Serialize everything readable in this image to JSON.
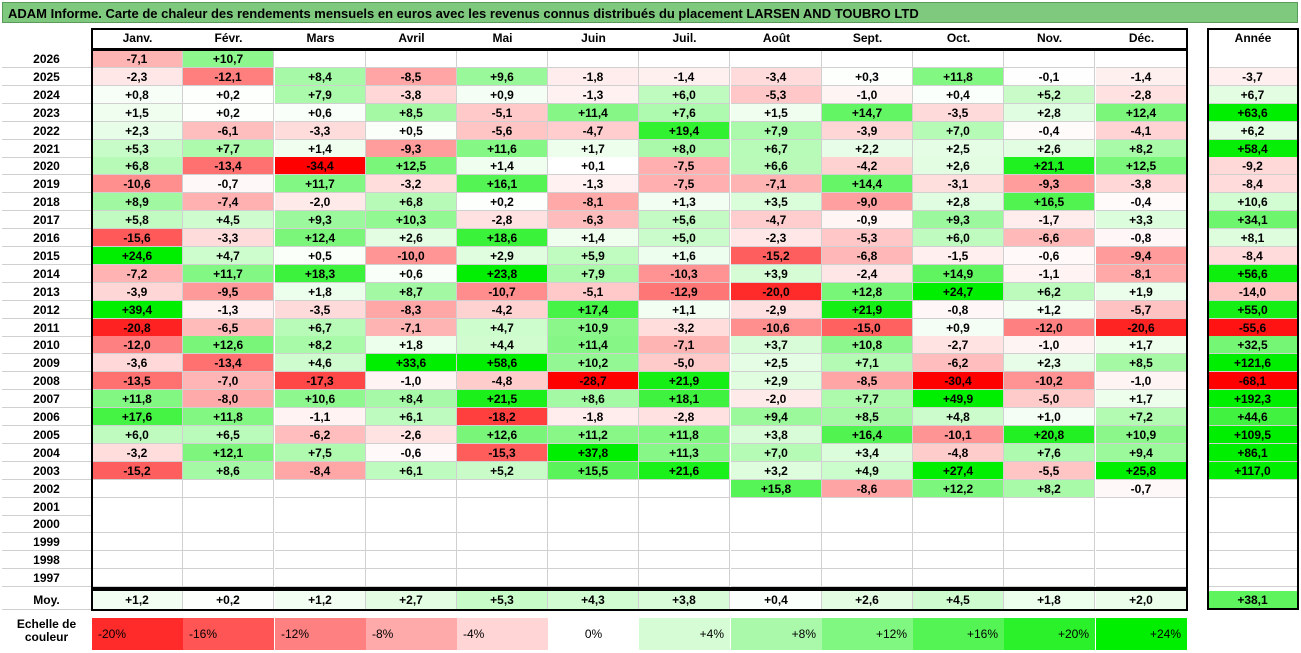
{
  "title": "ADAM Informe. Carte de chaleur des rendements mensuels en euros avec les revenus connus distribués du placement LARSEN AND TOUBRO LTD",
  "chart_data": {
    "type": "heatmap",
    "months": [
      "Janv.",
      "Févr.",
      "Mars",
      "Avril",
      "Mai",
      "Juin",
      "Juil.",
      "Août",
      "Sept.",
      "Oct.",
      "Nov.",
      "Déc."
    ],
    "annual_header": "Année",
    "rows": [
      {
        "year": "2026",
        "values": [
          "-7,1",
          "+10,7",
          "",
          "",
          "",
          "",
          "",
          "",
          "",
          "",
          "",
          ""
        ],
        "annual": ""
      },
      {
        "year": "2025",
        "values": [
          "-2,3",
          "-12,1",
          "+8,4",
          "-8,5",
          "+9,6",
          "-1,8",
          "-1,4",
          "-3,4",
          "+0,3",
          "+11,8",
          "-0,1",
          "-1,4"
        ],
        "annual": "-3,7"
      },
      {
        "year": "2024",
        "values": [
          "+0,8",
          "+0,2",
          "+7,9",
          "-3,8",
          "+0,9",
          "-1,3",
          "+6,0",
          "-5,3",
          "-1,0",
          "+0,4",
          "+5,2",
          "-2,8"
        ],
        "annual": "+6,7"
      },
      {
        "year": "2023",
        "values": [
          "+1,5",
          "+0,2",
          "+0,6",
          "+8,5",
          "-5,1",
          "+11,4",
          "+7,6",
          "+1,5",
          "+14,7",
          "-3,5",
          "+2,8",
          "+12,4"
        ],
        "annual": "+63,6"
      },
      {
        "year": "2022",
        "values": [
          "+2,3",
          "-6,1",
          "-3,3",
          "+0,5",
          "-5,6",
          "-4,7",
          "+19,4",
          "+7,9",
          "-3,9",
          "+7,0",
          "-0,4",
          "-4,1"
        ],
        "annual": "+6,2"
      },
      {
        "year": "2021",
        "values": [
          "+5,3",
          "+7,7",
          "+1,4",
          "-9,3",
          "+11,6",
          "+1,7",
          "+8,0",
          "+6,7",
          "+2,2",
          "+2,5",
          "+2,6",
          "+8,2"
        ],
        "annual": "+58,4"
      },
      {
        "year": "2020",
        "values": [
          "+6,8",
          "-13,4",
          "-34,4",
          "+12,5",
          "+1,4",
          "+0,1",
          "-7,5",
          "+6,6",
          "-4,2",
          "+2,6",
          "+21,1",
          "+12,5"
        ],
        "annual": "-9,2"
      },
      {
        "year": "2019",
        "values": [
          "-10,6",
          "-0,7",
          "+11,7",
          "-3,2",
          "+16,1",
          "-1,3",
          "-7,5",
          "-7,1",
          "+14,4",
          "-3,1",
          "-9,3",
          "-3,8"
        ],
        "annual": "-8,4"
      },
      {
        "year": "2018",
        "values": [
          "+8,9",
          "-7,4",
          "-2,0",
          "+6,8",
          "+0,2",
          "-8,1",
          "+1,3",
          "+3,5",
          "-9,0",
          "+2,8",
          "+16,5",
          "-0,4"
        ],
        "annual": "+10,6"
      },
      {
        "year": "2017",
        "values": [
          "+5,8",
          "+4,5",
          "+9,3",
          "+10,3",
          "-2,8",
          "-6,3",
          "+5,6",
          "-4,7",
          "-0,9",
          "+9,3",
          "-1,7",
          "+3,3"
        ],
        "annual": "+34,1"
      },
      {
        "year": "2016",
        "values": [
          "-15,6",
          "-3,3",
          "+12,4",
          "+2,6",
          "+18,6",
          "+1,4",
          "+5,0",
          "-2,3",
          "-5,3",
          "+6,0",
          "-6,6",
          "-0,8"
        ],
        "annual": "+8,1"
      },
      {
        "year": "2015",
        "values": [
          "+24,6",
          "+4,7",
          "+0,5",
          "-10,0",
          "+2,9",
          "+5,9",
          "+1,6",
          "-15,2",
          "-6,8",
          "-1,5",
          "-0,6",
          "-9,4"
        ],
        "annual": "-8,4"
      },
      {
        "year": "2014",
        "values": [
          "-7,2",
          "+11,7",
          "+18,3",
          "+0,6",
          "+23,8",
          "+7,9",
          "-10,3",
          "+3,9",
          "-2,4",
          "+14,9",
          "-1,1",
          "-8,1"
        ],
        "annual": "+56,6"
      },
      {
        "year": "2013",
        "values": [
          "-3,9",
          "-9,5",
          "+1,8",
          "+8,7",
          "-10,7",
          "-5,1",
          "-12,9",
          "-20,0",
          "+12,8",
          "+24,7",
          "+6,2",
          "+1,9"
        ],
        "annual": "-14,0"
      },
      {
        "year": "2012",
        "values": [
          "+39,4",
          "-1,3",
          "-3,5",
          "-8,3",
          "-4,2",
          "+17,4",
          "+1,1",
          "-2,9",
          "+21,9",
          "-0,8",
          "+1,2",
          "-5,7"
        ],
        "annual": "+55,0"
      },
      {
        "year": "2011",
        "values": [
          "-20,8",
          "-6,5",
          "+6,7",
          "-7,1",
          "+4,7",
          "+10,9",
          "-3,2",
          "-10,6",
          "-15,0",
          "+0,9",
          "-12,0",
          "-20,6"
        ],
        "annual": "-55,6"
      },
      {
        "year": "2010",
        "values": [
          "-12,0",
          "+12,6",
          "+8,2",
          "+1,8",
          "+4,4",
          "+11,4",
          "-7,1",
          "+3,7",
          "+10,8",
          "-2,7",
          "-1,0",
          "+1,7"
        ],
        "annual": "+32,5"
      },
      {
        "year": "2009",
        "values": [
          "-3,6",
          "-13,4",
          "+4,6",
          "+33,6",
          "+58,6",
          "+10,2",
          "-5,0",
          "+2,5",
          "+7,1",
          "-6,2",
          "+2,3",
          "+8,5"
        ],
        "annual": "+121,6"
      },
      {
        "year": "2008",
        "values": [
          "-13,5",
          "-7,0",
          "-17,3",
          "-1,0",
          "-4,8",
          "-28,7",
          "+21,9",
          "+2,9",
          "-8,5",
          "-30,4",
          "-10,2",
          "-1,0"
        ],
        "annual": "-68,1"
      },
      {
        "year": "2007",
        "values": [
          "+11,8",
          "-8,0",
          "+10,6",
          "+8,4",
          "+21,5",
          "+8,6",
          "+18,1",
          "-2,0",
          "+7,7",
          "+49,9",
          "-5,0",
          "+1,7"
        ],
        "annual": "+192,3"
      },
      {
        "year": "2006",
        "values": [
          "+17,6",
          "+11,8",
          "-1,1",
          "+6,1",
          "-18,2",
          "-1,8",
          "-2,8",
          "+9,4",
          "+8,5",
          "+4,8",
          "+1,0",
          "+7,2"
        ],
        "annual": "+44,6"
      },
      {
        "year": "2005",
        "values": [
          "+6,0",
          "+6,5",
          "-6,2",
          "-2,6",
          "+12,6",
          "+11,2",
          "+11,8",
          "+3,8",
          "+16,4",
          "-10,1",
          "+20,8",
          "+10,9"
        ],
        "annual": "+109,5"
      },
      {
        "year": "2004",
        "values": [
          "-3,2",
          "+12,1",
          "+7,5",
          "-0,6",
          "-15,3",
          "+37,8",
          "+11,3",
          "+7,0",
          "+3,4",
          "-4,8",
          "+7,6",
          "+9,4"
        ],
        "annual": "+86,1"
      },
      {
        "year": "2003",
        "values": [
          "-15,2",
          "+8,6",
          "-8,4",
          "+6,1",
          "+5,2",
          "+15,5",
          "+21,6",
          "+3,2",
          "+4,9",
          "+27,4",
          "-5,5",
          "+25,8"
        ],
        "annual": "+117,0"
      },
      {
        "year": "2002",
        "values": [
          "",
          "",
          "",
          "",
          "",
          "",
          "",
          "+15,8",
          "-8,6",
          "+12,2",
          "+8,2",
          "-0,7"
        ],
        "annual": ""
      },
      {
        "year": "2001",
        "values": [
          "",
          "",
          "",
          "",
          "",
          "",
          "",
          "",
          "",
          "",
          "",
          ""
        ],
        "annual": ""
      },
      {
        "year": "2000",
        "values": [
          "",
          "",
          "",
          "",
          "",
          "",
          "",
          "",
          "",
          "",
          "",
          ""
        ],
        "annual": ""
      },
      {
        "year": "1999",
        "values": [
          "",
          "",
          "",
          "",
          "",
          "",
          "",
          "",
          "",
          "",
          "",
          ""
        ],
        "annual": ""
      },
      {
        "year": "1998",
        "values": [
          "",
          "",
          "",
          "",
          "",
          "",
          "",
          "",
          "",
          "",
          "",
          ""
        ],
        "annual": ""
      },
      {
        "year": "1997",
        "values": [
          "",
          "",
          "",
          "",
          "",
          "",
          "",
          "",
          "",
          "",
          "",
          ""
        ],
        "annual": ""
      }
    ],
    "average_label": "Moy.",
    "averages": [
      "+1,2",
      "+0,2",
      "+1,2",
      "+2,7",
      "+5,3",
      "+4,3",
      "+3,8",
      "+0,4",
      "+2,6",
      "+4,5",
      "+1,8",
      "+2,0"
    ],
    "average_annual": "+38,1",
    "scale_label": "Echelle de couleur",
    "scale": [
      "-20%",
      "-16%",
      "-12%",
      "-8%",
      "-4%",
      "0%",
      "+4%",
      "+8%",
      "+12%",
      "+16%",
      "+20%",
      "+24%"
    ],
    "colors": {
      "negative": "#ff0000",
      "positive": "#00ee00",
      "neutral": "#ffffff",
      "title_bg": "#7fc97f"
    }
  }
}
